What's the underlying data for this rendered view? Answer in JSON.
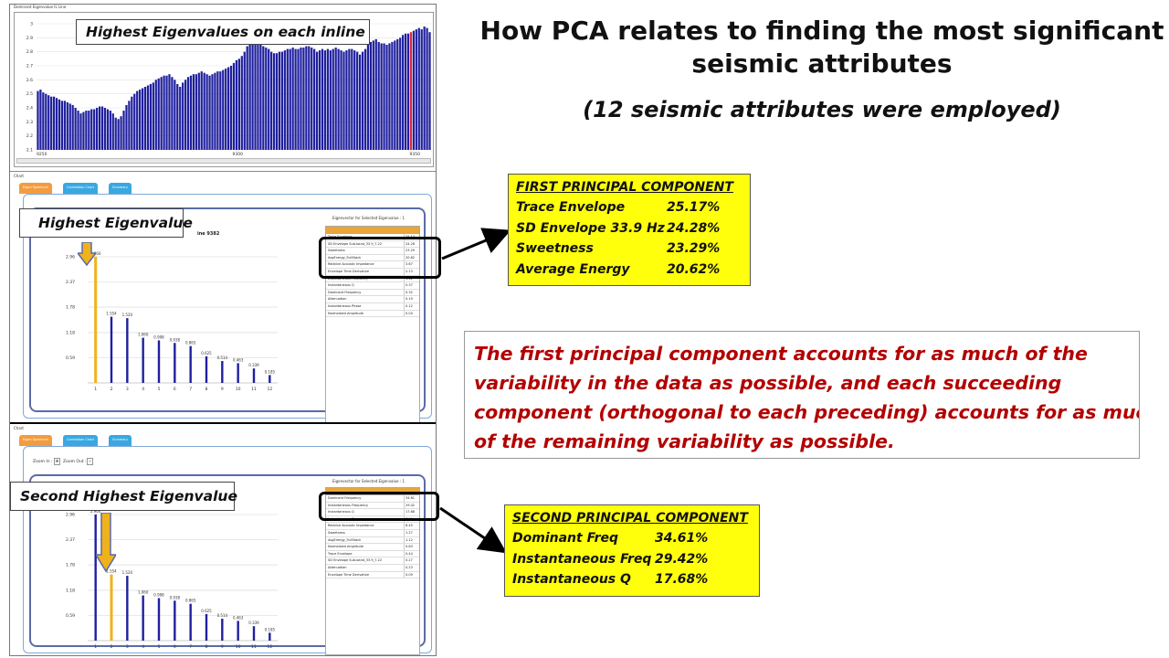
{
  "title": {
    "line1": "How PCA relates to finding the most significant",
    "line2": "seismic attributes",
    "subtitle": "(12 seismic attributes were employed)"
  },
  "screenshot": {
    "top_panel_label": "Dominant Eigenvalue IL Line",
    "top_x_ticks": [
      "9250",
      "9300",
      "9350"
    ],
    "top_y_ticks": [
      "3",
      "2.9",
      "2.8",
      "2.7",
      "2.6",
      "2.5",
      "2.4",
      "2.3",
      "2.2",
      "2.1"
    ],
    "chart_label": "Chart",
    "tabs": [
      "Eigen Spectrum",
      "Correlation Chart",
      "Summary"
    ],
    "zoom_in_label": "Zoom In :",
    "zoom_out_label": "Zoom Out :",
    "inline_fragment": "ine  9382",
    "table_title": "Eigenvector for Selected Eigenvalue : 1",
    "bar_y_ticks": [
      "2.96",
      "2.37",
      "1.78",
      "1.18",
      "0.59"
    ],
    "bar_x_ticks": [
      "1",
      "2",
      "3",
      "4",
      "5",
      "6",
      "7",
      "8",
      "9",
      "10",
      "11",
      "12"
    ]
  },
  "colors": {
    "bar_blue": "#1f1f9e",
    "highlight_bar": "#f0b21c",
    "highlight_top_bar": "#e0263c",
    "yellow_box": "#ffff0c",
    "red_text": "#b30000"
  },
  "icons": [
    "arrow-down-icon",
    "arrow-right-icon"
  ],
  "top_chart": {
    "type": "bar",
    "title": "Highest  Eigenvalues  on each inline",
    "y_range": [
      2.1,
      3.0
    ],
    "highlight_index": 139,
    "values": [
      2.52,
      2.53,
      2.51,
      2.5,
      2.49,
      2.48,
      2.48,
      2.47,
      2.46,
      2.45,
      2.45,
      2.44,
      2.43,
      2.42,
      2.4,
      2.38,
      2.36,
      2.37,
      2.38,
      2.38,
      2.39,
      2.39,
      2.4,
      2.41,
      2.41,
      2.4,
      2.39,
      2.38,
      2.36,
      2.33,
      2.32,
      2.34,
      2.38,
      2.42,
      2.45,
      2.48,
      2.5,
      2.52,
      2.53,
      2.54,
      2.55,
      2.56,
      2.57,
      2.58,
      2.6,
      2.61,
      2.62,
      2.63,
      2.63,
      2.64,
      2.62,
      2.6,
      2.57,
      2.55,
      2.58,
      2.6,
      2.62,
      2.63,
      2.64,
      2.64,
      2.65,
      2.66,
      2.65,
      2.64,
      2.63,
      2.64,
      2.65,
      2.66,
      2.66,
      2.67,
      2.68,
      2.69,
      2.7,
      2.72,
      2.74,
      2.75,
      2.77,
      2.8,
      2.84,
      2.86,
      2.87,
      2.86,
      2.86,
      2.85,
      2.84,
      2.83,
      2.82,
      2.8,
      2.79,
      2.79,
      2.8,
      2.8,
      2.81,
      2.82,
      2.82,
      2.83,
      2.82,
      2.82,
      2.83,
      2.83,
      2.84,
      2.84,
      2.83,
      2.82,
      2.8,
      2.81,
      2.82,
      2.81,
      2.82,
      2.81,
      2.82,
      2.83,
      2.82,
      2.81,
      2.8,
      2.81,
      2.82,
      2.82,
      2.81,
      2.8,
      2.78,
      2.8,
      2.82,
      2.85,
      2.87,
      2.88,
      2.89,
      2.87,
      2.86,
      2.86,
      2.85,
      2.86,
      2.87,
      2.88,
      2.89,
      2.9,
      2.92,
      2.93,
      2.93,
      2.94,
      2.95,
      2.96,
      2.97,
      2.96,
      2.98,
      2.97,
      2.94
    ]
  },
  "eigen_chart_1": {
    "type": "bar",
    "label": "Highest  Eigenvalue",
    "y_range": [
      0,
      2.96
    ],
    "highlight_index": 0,
    "values": [
      2.96,
      1.554,
      1.52,
      1.06,
      0.998,
      0.938,
      0.865,
      0.625,
      0.514,
      0.463,
      0.339,
      0.185
    ],
    "data_labels": [
      "2.960",
      "1.554",
      "1.520",
      "1.060",
      "0.998",
      "0.938",
      "0.865",
      "0.625",
      "0.514",
      "0.463",
      "0.339",
      "0.185"
    ],
    "table": [
      {
        "name": "Trace Envelope",
        "value": "25.17"
      },
      {
        "name": "SD Envelope Sub-band_33.9_7.22",
        "value": "24.28"
      },
      {
        "name": "Sweetness",
        "value": "23.29"
      },
      {
        "name": "AvgEnergy_FullStack",
        "value": "20.62"
      },
      {
        "name": "Relative Acoustic Impedance",
        "value": "3.67"
      },
      {
        "name": "Envelope Time Derivative",
        "value": "2.13"
      },
      {
        "name": "Instantaneous Frequency",
        "value": "1.42"
      },
      {
        "name": "Instantaneous Q",
        "value": "0.37"
      },
      {
        "name": "Dominant Frequency",
        "value": "0.32"
      },
      {
        "name": "Attenuation",
        "value": "0.19"
      },
      {
        "name": "Instantaneous Phase",
        "value": "0.12"
      },
      {
        "name": "Normalized Amplitude",
        "value": "0.04"
      }
    ]
  },
  "eigen_chart_2": {
    "type": "bar",
    "label": "Second Highest  Eigenvalue",
    "y_range": [
      0,
      2.96
    ],
    "highlight_index": 1,
    "values": [
      2.96,
      1.554,
      1.52,
      1.06,
      0.998,
      0.938,
      0.865,
      0.625,
      0.514,
      0.463,
      0.339,
      0.185
    ],
    "data_labels": [
      "2.960",
      "1.554",
      "1.520",
      "1.060",
      "0.998",
      "0.938",
      "0.865",
      "0.625",
      "0.514",
      "0.463",
      "0.339",
      "0.185"
    ],
    "table": [
      {
        "name": "Dominant Frequency",
        "value": "34.61"
      },
      {
        "name": "Instantaneous Frequency",
        "value": "29.42"
      },
      {
        "name": "Instantaneous Q",
        "value": "17.68"
      },
      {
        "name": "Instantaneous Phase",
        "value": "7.40"
      },
      {
        "name": "Relative Acoustic Impedance",
        "value": "6.45"
      },
      {
        "name": "Sweetness",
        "value": "1.27"
      },
      {
        "name": "AvgEnergy_FullStack",
        "value": "1.12"
      },
      {
        "name": "Normalized Amplitude",
        "value": "0.83"
      },
      {
        "name": "Trace Envelope",
        "value": "0.44"
      },
      {
        "name": "SD Envelope Sub-band_33.9_7.22",
        "value": "0.27"
      },
      {
        "name": "Attenuation",
        "value": "0.23"
      },
      {
        "name": "Envelope Time Derivative",
        "value": "0.09"
      }
    ]
  },
  "first_pc": {
    "title": "FIRST PRINCIPAL COMPONENT",
    "rows": [
      {
        "name": "Trace Envelope",
        "value": "25.17%"
      },
      {
        "name": "SD Envelope 33.9 Hz",
        "value": "24.28%"
      },
      {
        "name": "Sweetness",
        "value": "23.29%"
      },
      {
        "name": "Average Energy",
        "value": "20.62%"
      }
    ]
  },
  "second_pc": {
    "title": "SECOND PRINCIPAL COMPONENT",
    "rows": [
      {
        "name": "Dominant Freq",
        "value": "34.61%"
      },
      {
        "name": "Instantaneous Freq",
        "value": "29.42%"
      },
      {
        "name": "Instantaneous Q",
        "value": "17.68%"
      }
    ]
  },
  "explanation": {
    "line1": "The first principal component accounts for as much of the",
    "line2": "variability in the data as possible, and each succeeding",
    "line3": "component (orthogonal to each preceding) accounts for as much",
    "line4": "of the  remaining variability as possible."
  }
}
